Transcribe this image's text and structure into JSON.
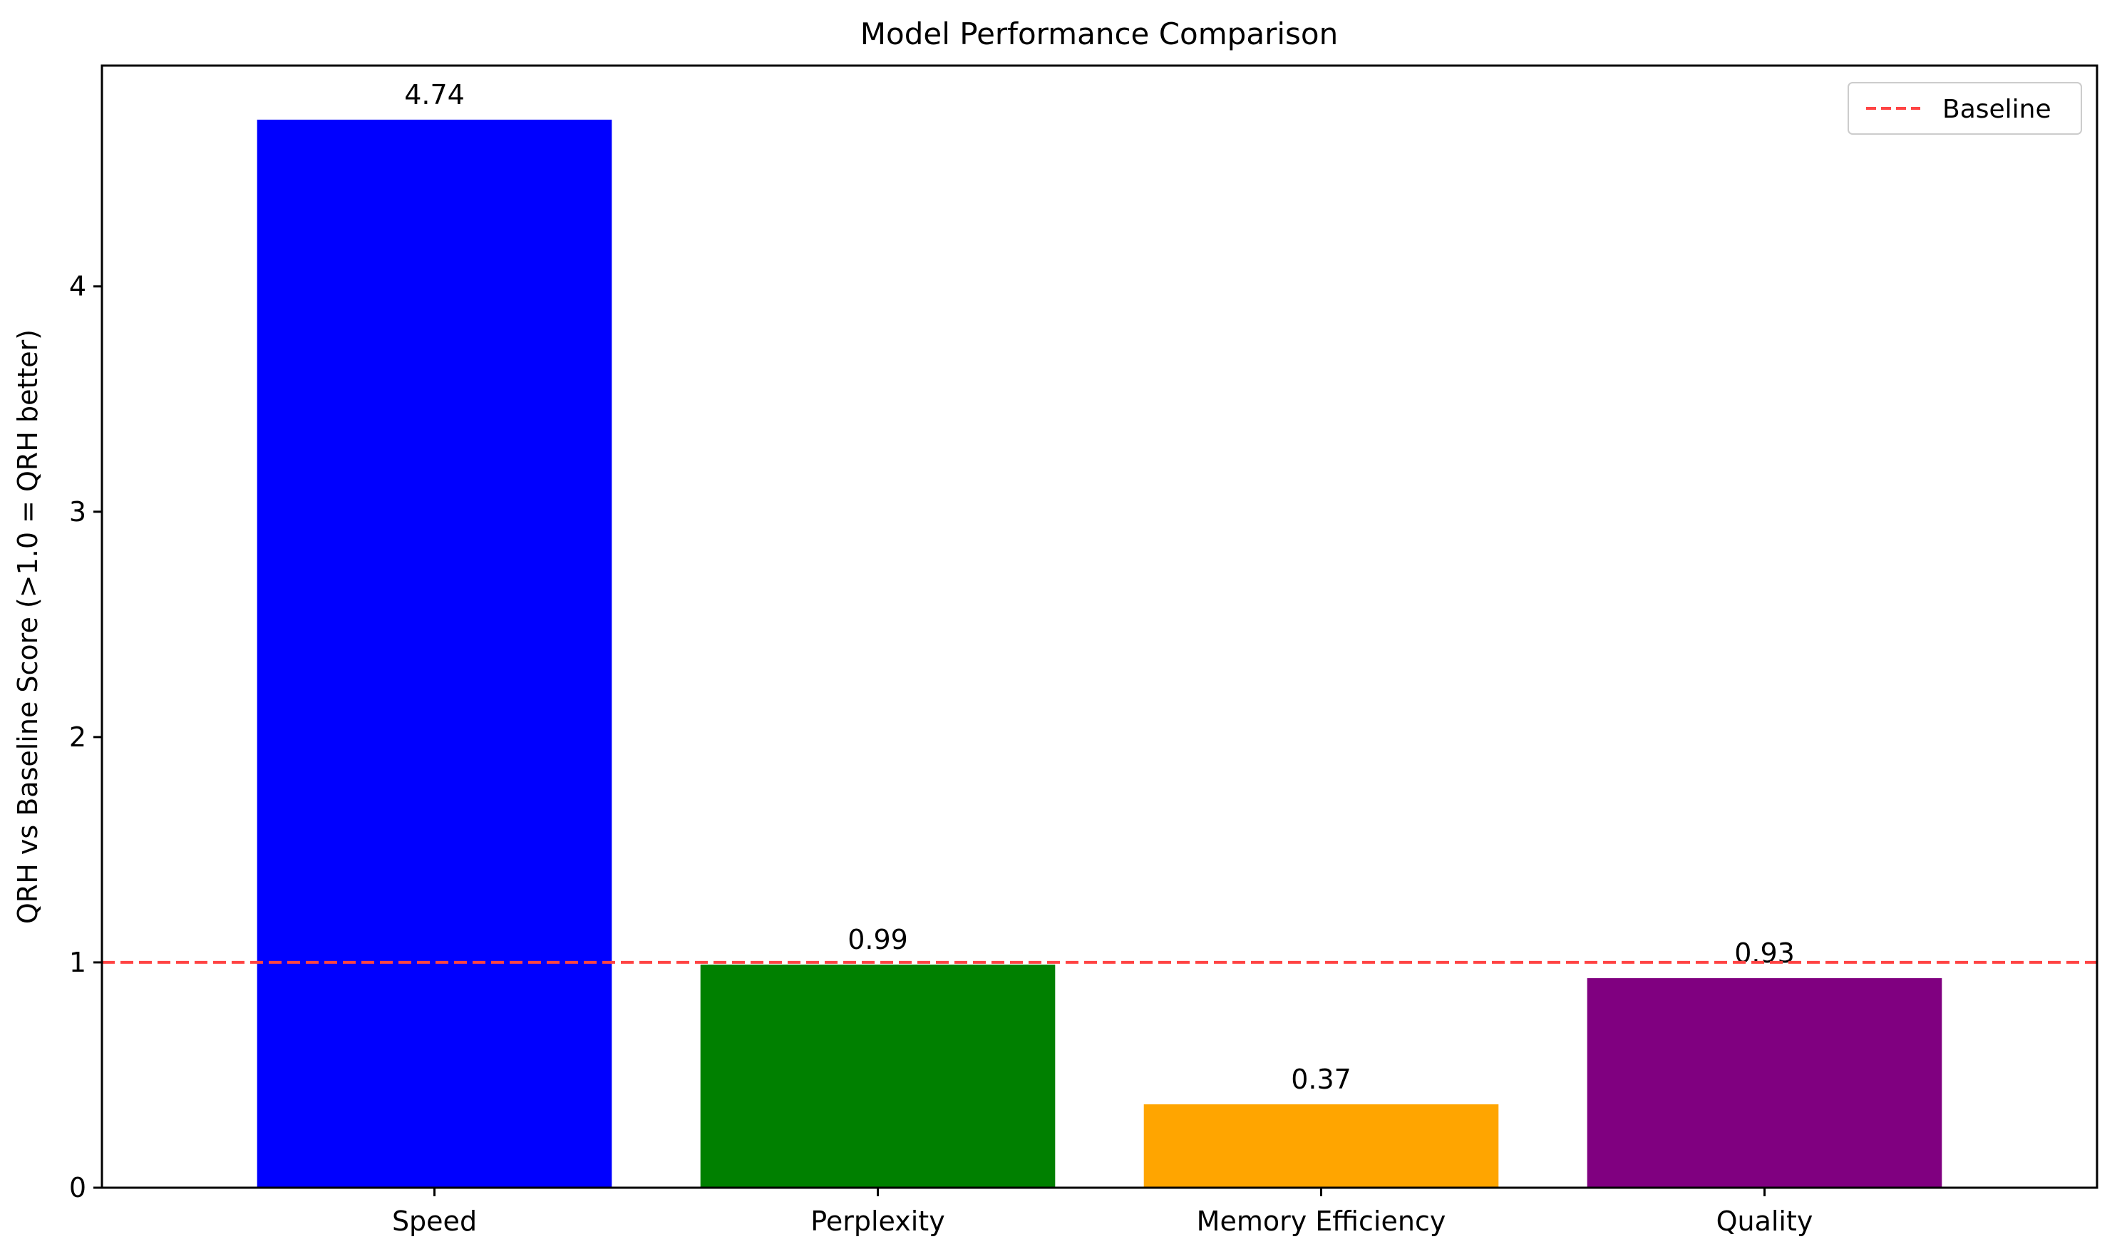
{
  "chart_data": {
    "type": "bar",
    "title": "Model Performance Comparison",
    "xlabel": "",
    "ylabel": "QRH vs Baseline Score (>1.0 = QRH better)",
    "categories": [
      "Speed",
      "Perplexity",
      "Memory Efficiency",
      "Quality"
    ],
    "values": [
      4.74,
      0.99,
      0.37,
      0.93
    ],
    "value_labels": [
      "4.74",
      "0.99",
      "0.37",
      "0.93"
    ],
    "bar_colors": [
      "#0000ff",
      "#008000",
      "#ffa500",
      "#800080"
    ],
    "ylim": [
      0,
      4.98
    ],
    "yticks": [
      0,
      1,
      2,
      3,
      4
    ],
    "ytick_labels": [
      "0",
      "1",
      "2",
      "3",
      "4"
    ],
    "baseline": {
      "value": 1.0,
      "label": "Baseline",
      "color": "#ff4444",
      "style": "dashed"
    },
    "legend": {
      "position": "top-right",
      "entries": [
        "Baseline"
      ]
    },
    "grid": false
  }
}
